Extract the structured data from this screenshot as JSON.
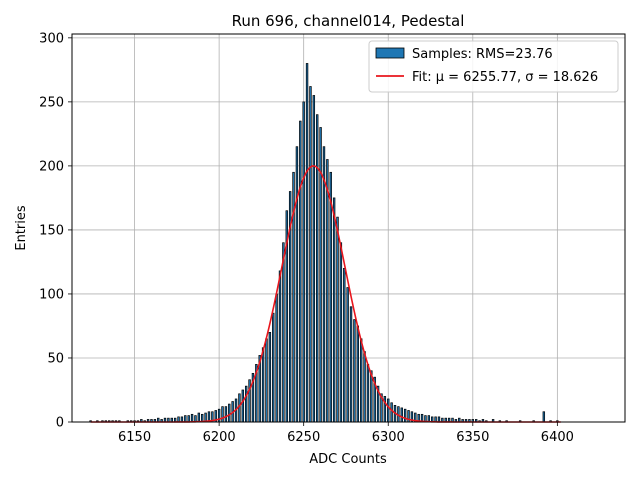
{
  "chart_data": {
    "type": "bar",
    "title": "Run 696, channel014, Pedestal",
    "xlabel": "ADC Counts",
    "ylabel": "Entries",
    "xlim": [
      6113,
      6440
    ],
    "ylim": [
      0,
      303
    ],
    "xticks": [
      6150,
      6200,
      6250,
      6300,
      6350,
      6400
    ],
    "yticks": [
      0,
      50,
      100,
      150,
      200,
      250,
      300
    ],
    "grid": true,
    "legend_position": "top-right",
    "series": [
      {
        "name": "Samples: RMS=23.76",
        "kind": "histogram",
        "color": "#1f77b4",
        "edgecolor": "#000000",
        "bin_width": 1,
        "x": [
          6124,
          6128,
          6131,
          6133,
          6135,
          6137,
          6139,
          6141,
          6146,
          6148,
          6150,
          6152,
          6154,
          6156,
          6158,
          6160,
          6162,
          6164,
          6166,
          6168,
          6170,
          6172,
          6174,
          6176,
          6178,
          6180,
          6182,
          6184,
          6186,
          6188,
          6190,
          6192,
          6194,
          6196,
          6198,
          6200,
          6202,
          6204,
          6206,
          6208,
          6210,
          6212,
          6214,
          6216,
          6218,
          6220,
          6222,
          6224,
          6226,
          6228,
          6230,
          6232,
          6234,
          6236,
          6238,
          6240,
          6242,
          6244,
          6246,
          6248,
          6250,
          6252,
          6254,
          6256,
          6258,
          6260,
          6262,
          6264,
          6266,
          6268,
          6270,
          6272,
          6274,
          6276,
          6278,
          6280,
          6282,
          6284,
          6286,
          6288,
          6290,
          6292,
          6294,
          6296,
          6298,
          6300,
          6302,
          6304,
          6306,
          6308,
          6310,
          6312,
          6314,
          6316,
          6318,
          6320,
          6322,
          6324,
          6326,
          6328,
          6330,
          6332,
          6334,
          6336,
          6338,
          6340,
          6342,
          6344,
          6346,
          6348,
          6350,
          6352,
          6354,
          6356,
          6358,
          6362,
          6366,
          6370,
          6378,
          6386,
          6392,
          6396,
          6400
        ],
        "values": [
          1,
          1,
          1,
          1,
          1,
          1,
          1,
          1,
          1,
          1,
          1,
          1,
          2,
          1,
          2,
          2,
          2,
          3,
          2,
          3,
          3,
          3,
          3,
          4,
          4,
          5,
          5,
          6,
          5,
          7,
          6,
          7,
          8,
          8,
          9,
          10,
          12,
          12,
          14,
          16,
          18,
          22,
          25,
          28,
          33,
          38,
          45,
          52,
          58,
          65,
          70,
          85,
          100,
          118,
          140,
          165,
          180,
          195,
          215,
          235,
          250,
          280,
          262,
          255,
          240,
          230,
          215,
          205,
          195,
          175,
          160,
          140,
          120,
          105,
          90,
          80,
          75,
          65,
          55,
          45,
          40,
          35,
          28,
          22,
          20,
          18,
          15,
          13,
          12,
          11,
          10,
          9,
          8,
          7,
          6,
          6,
          5,
          5,
          4,
          4,
          4,
          3,
          3,
          3,
          3,
          2,
          3,
          2,
          2,
          2,
          2,
          2,
          1,
          2,
          1,
          2,
          1,
          1,
          1,
          1,
          8,
          1,
          1
        ]
      },
      {
        "name": "Fit: μ = 6255.77, σ = 18.626",
        "kind": "gaussian",
        "color": "#e8161d",
        "mu": 6255.77,
        "sigma": 18.626,
        "amplitude": 200,
        "range": [
          6124,
          6402
        ]
      }
    ]
  }
}
